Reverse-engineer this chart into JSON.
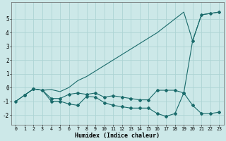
{
  "xlabel": "Humidex (Indice chaleur)",
  "xlim": [
    -0.5,
    23.5
  ],
  "ylim": [
    -2.7,
    6.2
  ],
  "yticks": [
    -2,
    -1,
    0,
    1,
    2,
    3,
    4,
    5
  ],
  "xticks": [
    0,
    1,
    2,
    3,
    4,
    5,
    6,
    7,
    8,
    9,
    10,
    11,
    12,
    13,
    14,
    15,
    16,
    17,
    18,
    19,
    20,
    21,
    22,
    23
  ],
  "bg_color": "#cce8e8",
  "grid_color": "#add4d4",
  "line_color": "#1a6b6b",
  "line1_x": [
    0,
    1,
    2,
    3,
    4,
    5,
    6,
    7,
    8,
    9,
    10,
    11,
    12,
    13,
    14,
    15,
    16,
    17,
    18,
    19,
    20,
    21,
    22,
    23
  ],
  "line1_y": [
    -1.0,
    -0.55,
    -0.1,
    -0.2,
    -0.15,
    -0.3,
    -0.0,
    0.5,
    0.8,
    1.2,
    1.6,
    2.0,
    2.4,
    2.8,
    3.2,
    3.6,
    4.0,
    4.5,
    5.0,
    5.5,
    3.4,
    5.3,
    5.4,
    5.5
  ],
  "line2_x": [
    1,
    2,
    3,
    4,
    5,
    6,
    7,
    8,
    9,
    10,
    11,
    12,
    13,
    14,
    15,
    16,
    17,
    18,
    19,
    20,
    21,
    22,
    23
  ],
  "line2_y": [
    -0.55,
    -0.1,
    -0.2,
    -0.8,
    -0.8,
    -0.5,
    -0.4,
    -0.5,
    -0.4,
    -0.7,
    -0.6,
    -0.7,
    -0.8,
    -0.9,
    -0.9,
    -0.2,
    -0.2,
    -0.2,
    -0.4,
    3.4,
    5.3,
    5.4,
    5.5
  ],
  "line3_x": [
    0,
    1,
    2,
    3,
    4,
    5,
    6,
    7,
    8,
    9,
    10,
    11,
    12,
    13,
    14,
    15,
    16,
    17,
    18,
    19,
    20,
    21,
    22,
    23
  ],
  "line3_y": [
    -1.0,
    -0.55,
    -0.1,
    -0.2,
    -1.0,
    -1.0,
    -1.2,
    -1.3,
    -0.65,
    -0.7,
    -1.1,
    -1.3,
    -1.4,
    -1.5,
    -1.5,
    -1.5,
    -1.9,
    -2.1,
    -1.9,
    -0.4,
    -1.3,
    -1.9,
    -1.9,
    -1.8
  ]
}
